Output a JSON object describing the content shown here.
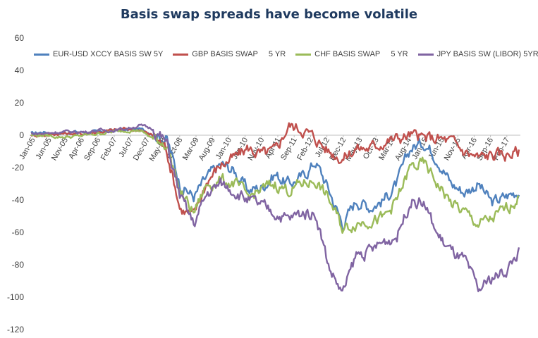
{
  "chart_data": {
    "type": "line",
    "title": "Basis swap spreads have become volatile",
    "xlabel": "",
    "ylabel": "",
    "ylim": [
      -120,
      60
    ],
    "yticks": [
      60,
      40,
      20,
      0,
      -20,
      -40,
      -60,
      -80,
      -100,
      -120
    ],
    "x_tick_labels": [
      "Jan-05",
      "Jun-05",
      "Nov-05",
      "Apr-06",
      "Sep-06",
      "Feb-07",
      "Jul-07",
      "Dec-07",
      "May-08",
      "Oct-08",
      "Mar-09",
      "Aug-09",
      "Jan-10",
      "Jun-10",
      "Nov-10",
      "Apr-11",
      "Sep-11",
      "Feb-12",
      "Jul-12",
      "Dec-12",
      "May-13",
      "Oct-13",
      "Mar-14",
      "Aug-14",
      "Jan-15",
      "Jun-15",
      "Nov-15",
      "Apr-16",
      "Sep-16",
      "Feb-17"
    ],
    "legend_position": "top",
    "grid": false,
    "series": [
      {
        "name": "EUR-USD XCCY BASIS SW 5Y",
        "color": "#4f81bd",
        "values": [
          1,
          2,
          1,
          2,
          2,
          2,
          3,
          3,
          4,
          1,
          -2,
          -30,
          -38,
          -26,
          -18,
          -22,
          -34,
          -32,
          -24,
          -30,
          -26,
          -16,
          -34,
          -55,
          -40,
          -44,
          -40,
          -30,
          -8,
          -4,
          -14,
          -30,
          -35,
          -30,
          -42,
          -38,
          -34
        ]
      },
      {
        "name": "GBP BASIS SWAP     5 YR",
        "color": "#c0504d",
        "values": [
          0,
          0,
          1,
          1,
          1,
          2,
          3,
          4,
          3,
          0,
          -8,
          -45,
          -50,
          -28,
          -18,
          -14,
          -8,
          -12,
          -10,
          6,
          4,
          -2,
          -10,
          -14,
          -8,
          -8,
          -4,
          -2,
          0,
          -2,
          -2,
          -4,
          -10,
          -14,
          -12,
          -12,
          -10
        ]
      },
      {
        "name": "CHF BASIS SWAP     5 YR",
        "color": "#9bbb59",
        "values": [
          0,
          0,
          -1,
          -1,
          0,
          1,
          2,
          3,
          3,
          -2,
          -5,
          -35,
          -48,
          -30,
          -28,
          -30,
          -38,
          -34,
          -30,
          -34,
          -30,
          -28,
          -40,
          -58,
          -54,
          -52,
          -52,
          -40,
          -20,
          -18,
          -30,
          -42,
          -48,
          -55,
          -52,
          -46,
          -38
        ]
      },
      {
        "name": "JPY BASIS SW (LIBOR) 5YR",
        "color": "#8064a2",
        "values": [
          1,
          1,
          2,
          2,
          2,
          3,
          3,
          4,
          6,
          4,
          -5,
          -38,
          -55,
          -36,
          -30,
          -34,
          -40,
          -44,
          -48,
          -52,
          -48,
          -48,
          -82,
          -98,
          -74,
          -72,
          -66,
          -62,
          -40,
          -42,
          -62,
          -72,
          -78,
          -96,
          -88,
          -84,
          -72
        ]
      }
    ]
  }
}
